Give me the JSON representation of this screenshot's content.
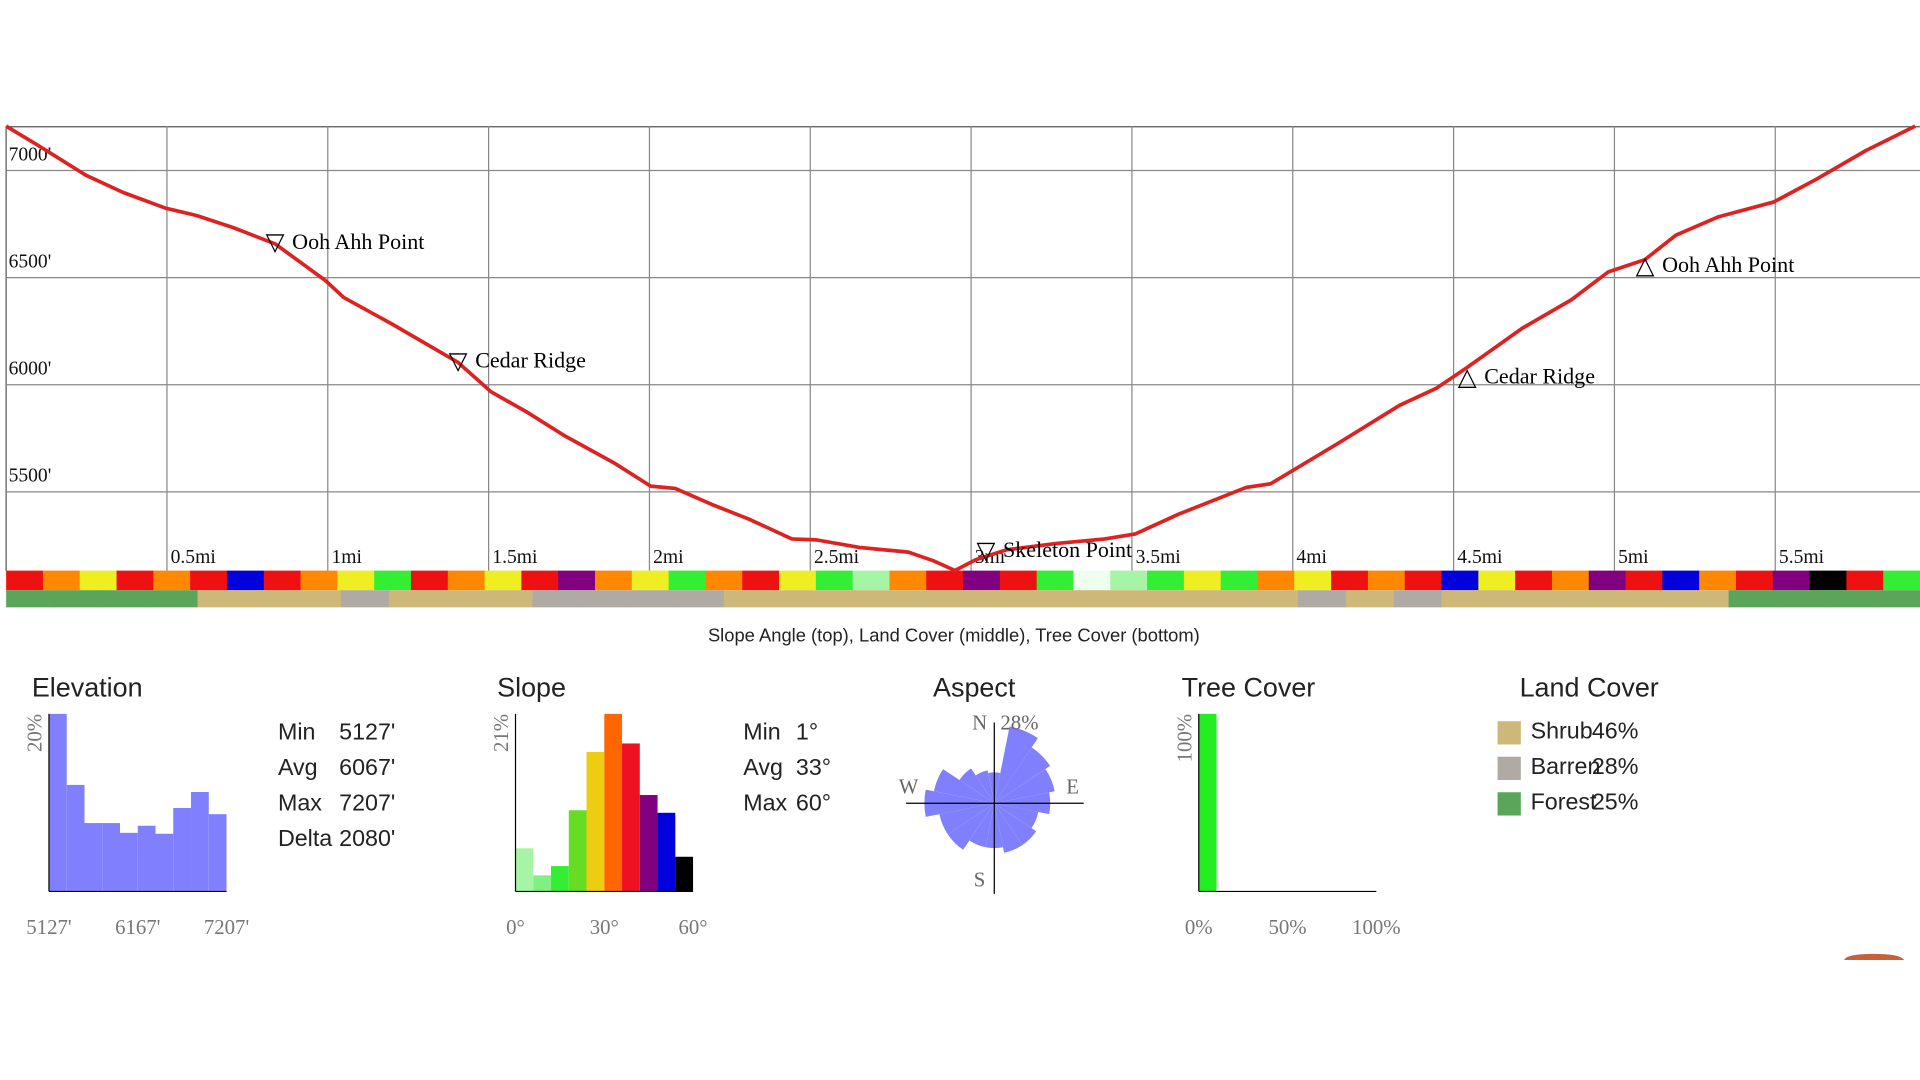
{
  "chart_data": [
    {
      "type": "line",
      "caption": "Slope Angle (top), Land Cover (middle), Tree Cover (bottom)",
      "xlim": [
        0,
        5.95
      ],
      "ylim": [
        5127,
        7207
      ],
      "grid": true,
      "xticks": [
        {
          "value": 0.5,
          "label": "0.5mi"
        },
        {
          "value": 1,
          "label": "1mi"
        },
        {
          "value": 1.5,
          "label": "1.5mi"
        },
        {
          "value": 2,
          "label": "2mi"
        },
        {
          "value": 2.5,
          "label": "2.5mi"
        },
        {
          "value": 3,
          "label": "3mi"
        },
        {
          "value": 3.5,
          "label": "3.5mi"
        },
        {
          "value": 4,
          "label": "4mi"
        },
        {
          "value": 4.5,
          "label": "4.5mi"
        },
        {
          "value": 5,
          "label": "5mi"
        },
        {
          "value": 5.5,
          "label": "5.5mi"
        }
      ],
      "yticks": [
        {
          "value": 5500,
          "label": "5500'"
        },
        {
          "value": 6000,
          "label": "6000'"
        },
        {
          "value": 6500,
          "label": "6500'"
        },
        {
          "value": 7000,
          "label": "7000'"
        }
      ],
      "series": [
        {
          "color": "#dd2222",
          "x": [
            0,
            0.095,
            0.248,
            0.363,
            0.496,
            0.592,
            0.706,
            0.836,
            0.992,
            1.05,
            1.202,
            1.405,
            1.508,
            1.622,
            1.737,
            1.889,
            2.004,
            2.08,
            2.195,
            2.309,
            2.443,
            2.519,
            2.653,
            2.805,
            2.882,
            2.95,
            3.015,
            3.111,
            3.263,
            3.416,
            3.511,
            3.645,
            3.76,
            3.855,
            3.931,
            4.008,
            4.141,
            4.332,
            4.447,
            4.542,
            4.714,
            4.866,
            4.981,
            5.095,
            5.191,
            5.324,
            5.496,
            5.63,
            5.782,
            5.935
          ],
          "values": [
            7207,
            7121,
            6978,
            6898,
            6824,
            6790,
            6733,
            6658,
            6487,
            6407,
            6281,
            6104,
            5967,
            5870,
            5761,
            5636,
            5527,
            5516,
            5441,
            5373,
            5281,
            5276,
            5241,
            5219,
            5179,
            5133,
            5184,
            5230,
            5259,
            5281,
            5304,
            5396,
            5464,
            5521,
            5538,
            5607,
            5727,
            5904,
            5984,
            6081,
            6264,
            6396,
            6527,
            6584,
            6698,
            6784,
            6853,
            6961,
            7093,
            7207
          ]
        }
      ],
      "annotations": [
        {
          "symbol": "▽",
          "text": "Ooh Ahh Point",
          "x": 0.836,
          "y": 6658
        },
        {
          "symbol": "▽",
          "text": "Cedar Ridge",
          "x": 1.405,
          "y": 6104
        },
        {
          "symbol": "▽",
          "text": "Skeleton Point",
          "x": 3.046,
          "y": 5220
        },
        {
          "symbol": "△",
          "text": "Cedar Ridge",
          "x": 4.542,
          "y": 6030
        },
        {
          "symbol": "△",
          "text": "Ooh Ahh Point",
          "x": 5.095,
          "y": 6550
        }
      ],
      "slope_strip": [
        "#ee1111",
        "#ff8800",
        "#eeee22",
        "#ee1111",
        "#ff8800",
        "#ee1111",
        "#0000dd",
        "#ee1111",
        "#ff8800",
        "#eeee22",
        "#33ee33",
        "#ee1111",
        "#ff8800",
        "#eeee22",
        "#ee1111",
        "#800080",
        "#ff8800",
        "#eeee22",
        "#33ee33",
        "#ff8800",
        "#ee1111",
        "#eeee22",
        "#33ee33",
        "#a6f5a6",
        "#ff8800",
        "#ee1111",
        "#800080",
        "#ee1111",
        "#33ee33",
        "#eeffee",
        "#a6f5a6",
        "#33ee33",
        "#eeee22",
        "#33ee33",
        "#ff8800",
        "#eeee22",
        "#ee1111",
        "#ff8800",
        "#ee1111",
        "#0000dd",
        "#eeee22",
        "#ee1111",
        "#ff8800",
        "#800080",
        "#ee1111",
        "#0000dd",
        "#ff8800",
        "#ee1111",
        "#800080",
        "#000000",
        "#ee1111",
        "#33ee33"
      ],
      "land_strip": [
        "Forest",
        "Forest",
        "Forest",
        "Forest",
        "Shrub",
        "Shrub",
        "Shrub",
        "Barren",
        "Shrub",
        "Shrub",
        "Shrub",
        "Barren",
        "Barren",
        "Barren",
        "Barren",
        "Shrub",
        "Shrub",
        "Shrub",
        "Shrub",
        "Shrub",
        "Shrub",
        "Shrub",
        "Shrub",
        "Shrub",
        "Shrub",
        "Shrub",
        "Shrub",
        "Barren",
        "Shrub",
        "Barren",
        "Shrub",
        "Shrub",
        "Shrub",
        "Shrub",
        "Shrub",
        "Shrub",
        "Forest",
        "Forest",
        "Forest",
        "Forest"
      ]
    },
    {
      "type": "histogram",
      "title": "Elevation",
      "color": "#8080ff",
      "bins": [
        5127,
        5335,
        5543,
        5751,
        5959,
        6167,
        6375,
        6583,
        6791,
        6999,
        7207
      ],
      "values": [
        20,
        12.0,
        7.7,
        7.7,
        6.6,
        7.4,
        6.5,
        9.4,
        11.2,
        8.7
      ],
      "xlim": [
        5127,
        7207
      ],
      "ylim": [
        0,
        20
      ],
      "xticks": [
        {
          "value": 5127,
          "label": "5127'"
        },
        {
          "value": 6167,
          "label": "6167'"
        },
        {
          "value": 7207,
          "label": "7207'"
        }
      ],
      "yticks": [
        {
          "value": 20,
          "label": "20%"
        }
      ],
      "stats": [
        {
          "label": "Min",
          "value": "5127'"
        },
        {
          "label": "Avg",
          "value": "6067'"
        },
        {
          "label": "Max",
          "value": "7207'"
        },
        {
          "label": "Delta",
          "value": "2080'"
        }
      ]
    },
    {
      "type": "histogram",
      "title": "Slope",
      "colors": [
        "#a6f5a6",
        "#80f080",
        "#33ee33",
        "#66dd22",
        "#eecc11",
        "#ff6600",
        "#ee1122",
        "#800080",
        "#0000dd",
        "#000000"
      ],
      "bins": [
        0,
        6,
        12,
        18,
        24,
        30,
        36,
        42,
        48,
        54,
        60
      ],
      "values": [
        5.1,
        1.9,
        3.0,
        9.6,
        16.5,
        21,
        17.5,
        11.4,
        9.3,
        4.1
      ],
      "xlim": [
        0,
        60
      ],
      "ylim": [
        0,
        21
      ],
      "xticks": [
        {
          "value": 0,
          "label": "0°"
        },
        {
          "value": 30,
          "label": "30°"
        },
        {
          "value": 60,
          "label": "60°"
        }
      ],
      "yticks": [
        {
          "value": 21,
          "label": "21%"
        }
      ],
      "stats": [
        {
          "label": "Min",
          "value": "1°"
        },
        {
          "label": "Avg",
          "value": "33°"
        },
        {
          "label": "Max",
          "value": "60°"
        }
      ]
    },
    {
      "type": "polar",
      "title": "Aspect",
      "color": "#8080ff",
      "categories": [
        "N",
        null,
        null,
        null,
        "E",
        null,
        null,
        null,
        "S",
        null,
        null,
        null,
        "W",
        null,
        null,
        null
      ],
      "values": [
        11,
        28,
        24,
        22,
        20,
        16,
        18,
        18,
        16,
        16,
        20,
        20,
        25,
        22,
        15,
        12
      ],
      "rlim": [
        0,
        28
      ],
      "rticks": [
        {
          "value": 28,
          "label": "28%"
        }
      ]
    },
    {
      "type": "histogram",
      "title": "Tree Cover",
      "color": "#22ee22",
      "bins": [
        0,
        10,
        20,
        30,
        40,
        50,
        60,
        70,
        80,
        90,
        100
      ],
      "values": [
        100,
        0,
        0,
        0,
        0,
        0,
        0,
        0,
        0,
        0
      ],
      "xlim": [
        0,
        100
      ],
      "ylim": [
        0,
        100
      ],
      "xticks": [
        {
          "value": 0,
          "label": "0%"
        },
        {
          "value": 50,
          "label": "50%"
        },
        {
          "value": 100,
          "label": "100%"
        }
      ],
      "yticks": [
        {
          "value": 100,
          "label": "100%"
        }
      ]
    },
    {
      "type": "legend",
      "title": "Land Cover",
      "categories": [
        "Shrub",
        "Barren",
        "Forest"
      ],
      "values": [
        46,
        28,
        25
      ],
      "value_labels": [
        "46%",
        "28%",
        "25%"
      ],
      "colors": [
        "#cdb87a",
        "#b0aaa4",
        "#5aa55a"
      ]
    }
  ]
}
